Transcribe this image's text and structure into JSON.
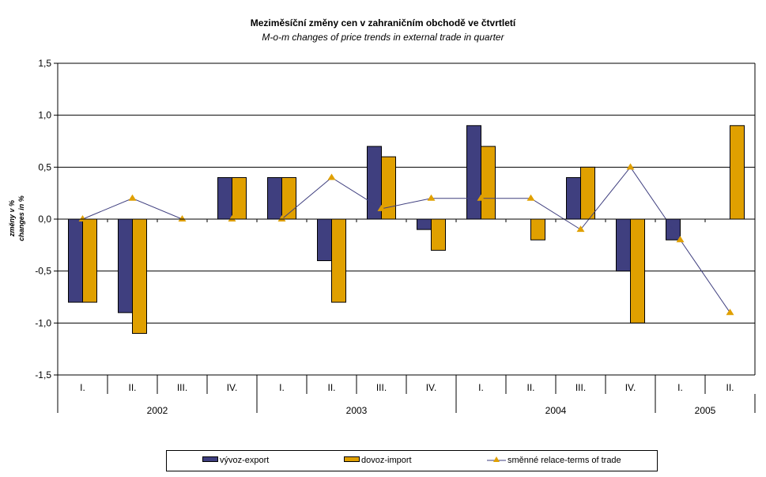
{
  "chart_data": {
    "type": "bar",
    "title": "Meziměsíční změny cen v zahraničním obchodě ve čtvrtletí",
    "subtitle": "M-o-m changes of price trends in external trade in quarter",
    "ylabel": [
      "změny v %",
      "changes in %"
    ],
    "xlabel": "",
    "ylim": [
      -1.5,
      1.5
    ],
    "yticks": [
      1.5,
      1.0,
      0.5,
      0.0,
      -0.5,
      -1.0,
      -1.5
    ],
    "ytick_labels": [
      "1,5",
      "1,0",
      "0,5",
      "0,0",
      "-0,5",
      "-1,0",
      "-1,5"
    ],
    "grid": true,
    "categories": [
      "I.",
      "II.",
      "III.",
      "IV.",
      "I.",
      "II.",
      "III.",
      "IV.",
      "I.",
      "II.",
      "III.",
      "IV.",
      "I.",
      "II."
    ],
    "groups": [
      {
        "label": "2002",
        "count": 4
      },
      {
        "label": "2003",
        "count": 4
      },
      {
        "label": "2004",
        "count": 4
      },
      {
        "label": "2005",
        "count": 2
      }
    ],
    "series": [
      {
        "name": "vývoz-export",
        "type": "bar",
        "color": "#3f3f7f",
        "values": [
          -0.8,
          -0.9,
          0.0,
          0.4,
          0.4,
          -0.4,
          0.7,
          -0.1,
          0.9,
          0.0,
          0.4,
          -0.5,
          -0.2,
          0.0
        ]
      },
      {
        "name": "dovoz-import",
        "type": "bar",
        "color": "#e0a000",
        "values": [
          -0.8,
          -1.1,
          0.0,
          0.4,
          0.4,
          -0.8,
          0.6,
          -0.3,
          0.7,
          -0.2,
          0.5,
          -1.0,
          0.0,
          0.9
        ]
      },
      {
        "name": "směnné relace-terms of trade",
        "type": "line",
        "color": "#3f3f7f",
        "marker_color": "#e0a000",
        "marker": "triangle",
        "values": [
          0.0,
          0.2,
          0.0,
          0.0,
          0.0,
          0.4,
          0.1,
          0.2,
          0.2,
          0.2,
          -0.1,
          0.5,
          -0.2,
          -0.9
        ]
      }
    ],
    "legend_position": "bottom"
  }
}
